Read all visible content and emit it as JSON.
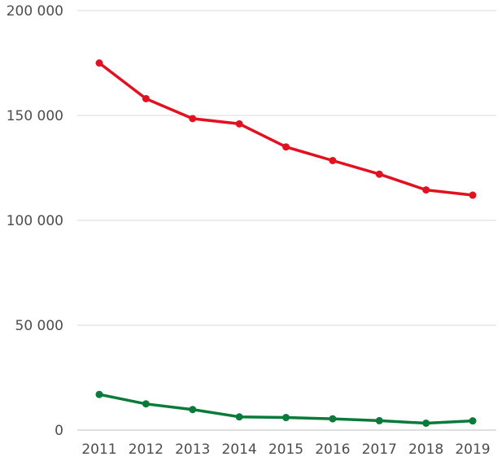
{
  "chart_data": {
    "type": "line",
    "title": "",
    "xlabel": "",
    "ylabel": "",
    "x": [
      "2011",
      "2012",
      "2013",
      "2014",
      "2015",
      "2016",
      "2017",
      "2018",
      "2019"
    ],
    "ylim": [
      0,
      200000
    ],
    "yticks": [
      0,
      50000,
      100000,
      150000,
      200000
    ],
    "ytick_labels": [
      "0",
      "50 000",
      "100 000",
      "150 000",
      "200 000"
    ],
    "grid": true,
    "legend": "none",
    "series": [
      {
        "color": "#e3101f",
        "values": [
          175000,
          158000,
          148500,
          146000,
          135000,
          128500,
          122000,
          114500,
          112000
        ]
      },
      {
        "color": "#0a7a3a",
        "values": [
          17000,
          12500,
          9800,
          6300,
          6000,
          5400,
          4500,
          3300,
          4400
        ]
      }
    ]
  }
}
